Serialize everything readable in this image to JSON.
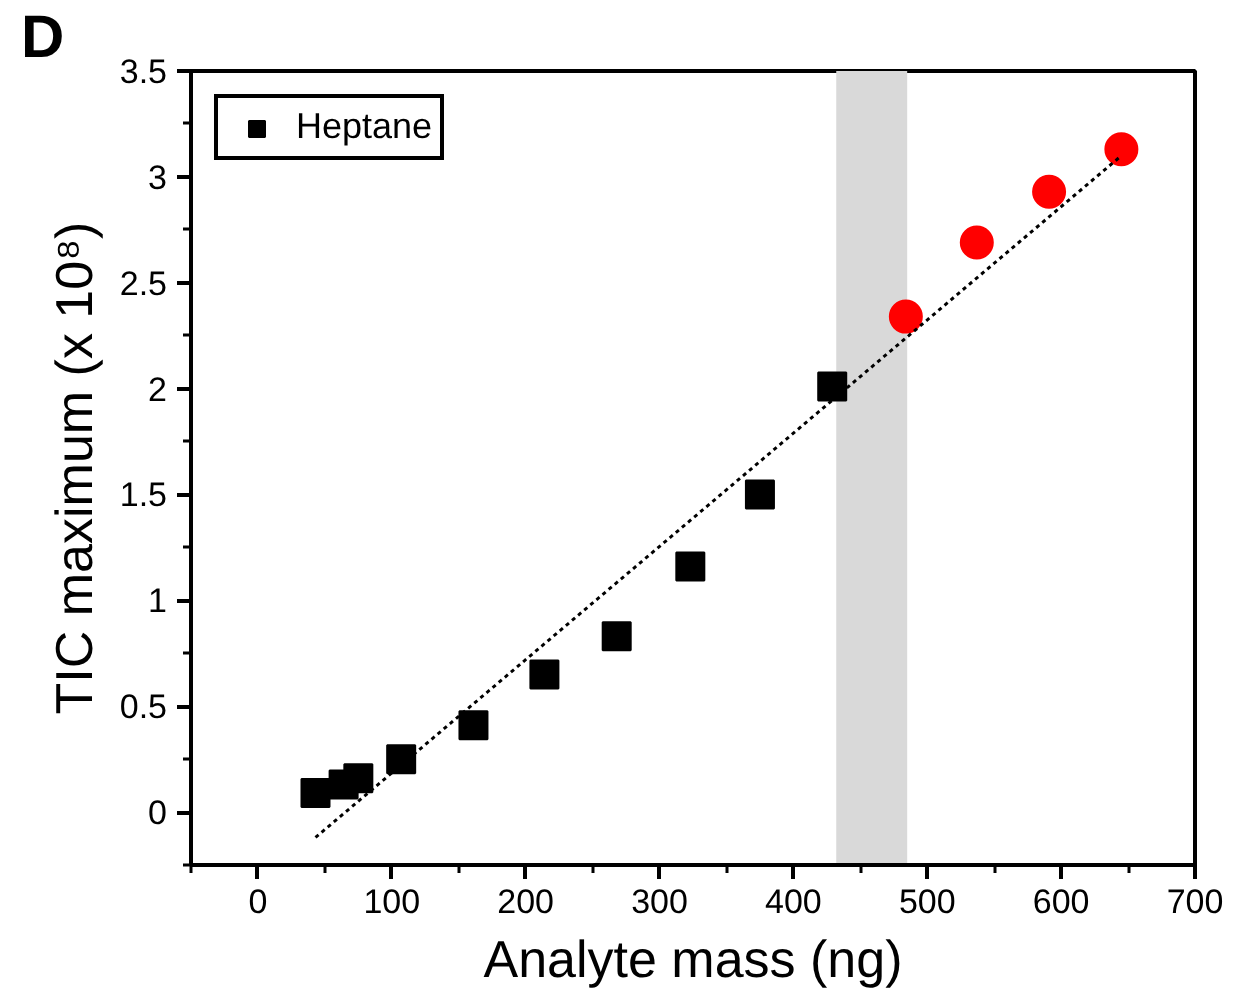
{
  "chart_data": {
    "type": "scatter",
    "xlabel": "Analyte mass (ng)",
    "ylabel": "TIC maximum (x 10⁸)",
    "annotations": [
      "D"
    ],
    "series": [
      {
        "name": "Heptane",
        "color": "#000000",
        "marker": "square",
        "x": [
          43,
          64,
          75,
          107,
          161,
          214,
          268,
          323,
          375,
          429
        ],
        "values": [
          0.09,
          0.13,
          0.16,
          0.25,
          0.41,
          0.65,
          0.83,
          1.16,
          1.5,
          2.01
        ]
      },
      {
        "color": "#ff0000",
        "marker": "circle",
        "x": [
          484,
          537,
          591,
          645
        ],
        "values": [
          2.34,
          2.69,
          2.93,
          3.13
        ]
      },
      {
        "type": "line",
        "color": "#000000",
        "line_style": "dotted",
        "x": [
          43,
          645
        ],
        "values": [
          -0.12,
          3.1
        ]
      }
    ],
    "bands": [
      {
        "axis": "x",
        "from": 432,
        "to": 485,
        "color": "#d9d9d9"
      }
    ],
    "xlim": [
      -50,
      700
    ],
    "xticks": [
      0,
      100,
      200,
      300,
      400,
      500,
      600,
      700
    ],
    "ylim": [
      -0.25,
      3.5
    ],
    "yticks": [
      0,
      0.5,
      1,
      1.5,
      2,
      2.5,
      3,
      3.5
    ],
    "grid": false,
    "legend": "top left"
  }
}
